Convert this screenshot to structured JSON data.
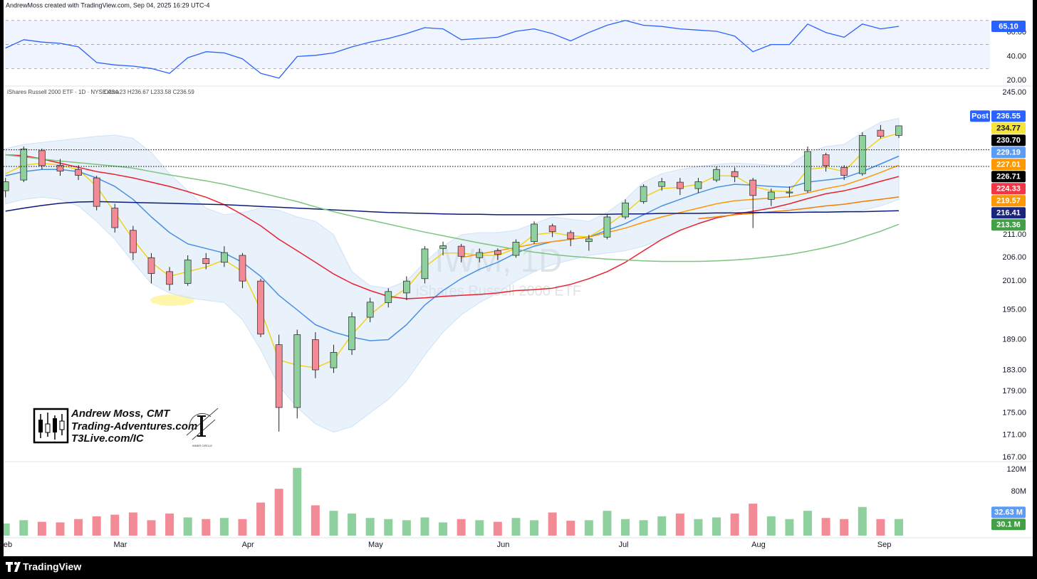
{
  "header": "AndrewMoss created with TradingView.com, Sep 04, 2025 16:29 UTC-4",
  "footer": "TradingView",
  "branding": {
    "name": "Andrew Moss, CMT",
    "site": "Trading-Adventures.com",
    "link": "T3Live.com/IC",
    "badge": "INNER CIRCLE"
  },
  "chart_data": [
    {
      "type": "line",
      "ylim": [
        16,
        74
      ],
      "yticks": [
        {
          "value": 60,
          "label": "60.00"
        },
        {
          "value": 40,
          "label": "40.00"
        },
        {
          "value": 20,
          "label": "20.00"
        }
      ],
      "levels": [
        70,
        50,
        30
      ],
      "band_color": "#2962ff",
      "series": [
        {
          "color": "#2962ff",
          "values": [
            47,
            54,
            52,
            51,
            48,
            35,
            33,
            32,
            30,
            26,
            39,
            44,
            43,
            38,
            26,
            22,
            40,
            41,
            43,
            48,
            52,
            55,
            59,
            64,
            63,
            54,
            55,
            56,
            61,
            63,
            59,
            53,
            60,
            66,
            70,
            66,
            65,
            63,
            62,
            61,
            57,
            44,
            50,
            50,
            67,
            60,
            56,
            67,
            63,
            65.1
          ]
        }
      ],
      "marker_labels": [
        {
          "value": 65.1,
          "label": "65.10",
          "color": "#2962ff"
        }
      ]
    },
    {
      "type": "candlestick",
      "title": "iShares Russell 2000 ETF · 1D · NYSE Arca",
      "subtitle": "O234.23 H236.67 L233.58 C236.59",
      "annotations": [
        "IWM, 1D",
        "iShares Russell 2000 ETF"
      ],
      "log_scale": true,
      "grid": false,
      "xlim": [
        -0.3,
        54
      ],
      "xticks": [
        {
          "value": 0,
          "label": "Feb"
        },
        {
          "value": 6.3,
          "label": "Mar"
        },
        {
          "value": 13.3,
          "label": "Apr"
        },
        {
          "value": 20.3,
          "label": "May"
        },
        {
          "value": 27.3,
          "label": "Jun"
        },
        {
          "value": 33.9,
          "label": "Jul"
        },
        {
          "value": 41.3,
          "label": "Aug"
        },
        {
          "value": 48.2,
          "label": "Sep"
        }
      ],
      "ylim": [
        166.4,
        246.5
      ],
      "yticks": [
        {
          "value": 245,
          "label": "245.00"
        },
        {
          "value": 211,
          "label": "211.00"
        },
        {
          "value": 206,
          "label": "206.00"
        },
        {
          "value": 201,
          "label": "201.00"
        },
        {
          "value": 195,
          "label": "195.00"
        },
        {
          "value": 189,
          "label": "189.00"
        },
        {
          "value": 183,
          "label": "183.00"
        },
        {
          "value": 179,
          "label": "179.00"
        },
        {
          "value": 175,
          "label": "175.00"
        },
        {
          "value": 171,
          "label": "171.00"
        },
        {
          "value": 167,
          "label": "167.00"
        }
      ],
      "up_color": "#8fd19e",
      "down_color": "#f28b96",
      "open": [
        221,
        223.5,
        230.5,
        227,
        226,
        224,
        217,
        212,
        206,
        203,
        200.5,
        205.8,
        205,
        206.5,
        201,
        188,
        176,
        189,
        183.5,
        187,
        193.5,
        196.5,
        198.5,
        201.5,
        208,
        208.5,
        206,
        207.5,
        206.5,
        209.5,
        213,
        211.5,
        209.5,
        210.5,
        215,
        218.5,
        222,
        223,
        221.5,
        223.5,
        225.5,
        223.5,
        219,
        220.5,
        221,
        229.5,
        226.5,
        225,
        235.5,
        234.23
      ],
      "high": [
        224,
        231.5,
        231,
        228.5,
        227,
        224.5,
        218,
        213,
        207,
        204,
        206.5,
        207,
        208.5,
        207,
        201.5,
        190,
        191,
        190.5,
        188,
        194.5,
        197.5,
        199.5,
        202,
        208.5,
        209.5,
        209,
        208,
        208,
        210,
        214,
        213.5,
        212,
        211,
        215.5,
        219,
        222.5,
        224,
        224,
        224,
        226.7,
        226.5,
        224,
        221.5,
        222,
        231.5,
        230,
        227,
        235,
        236.8,
        236.67
      ],
      "low": [
        219.5,
        223,
        226,
        224.5,
        223.5,
        216.5,
        211.5,
        205.5,
        200.5,
        199,
        200,
        203.5,
        204,
        199.5,
        189.5,
        171.6,
        174,
        181.5,
        182.5,
        186,
        192.5,
        195.5,
        197,
        200.5,
        206.5,
        205,
        205,
        205.5,
        206,
        209,
        210.5,
        208.5,
        207.5,
        210,
        214.5,
        218,
        221,
        220,
        220.5,
        223,
        223,
        212.5,
        217.5,
        219.5,
        220.5,
        225.5,
        223.5,
        224.5,
        233.5,
        233.58
      ],
      "close": [
        223.1,
        230.9,
        226.9,
        225.6,
        224.6,
        217.4,
        212.6,
        207.1,
        202.6,
        200.3,
        205.5,
        204.7,
        207.1,
        201,
        190.1,
        176,
        190,
        183.1,
        186.5,
        193.6,
        196.6,
        198.8,
        201,
        207.9,
        208.6,
        206.3,
        207.1,
        206.7,
        209.4,
        213.4,
        211.7,
        210.1,
        210.1,
        215,
        218.2,
        222,
        223.1,
        221.5,
        223.1,
        226,
        224.3,
        219.9,
        220.7,
        220.7,
        230.3,
        226.9,
        224.6,
        234.2,
        234,
        236.59
      ],
      "bands": {
        "color": "#cfe2f7",
        "upper": [
          231,
          232,
          232.5,
          233,
          233.5,
          234,
          234.3,
          233.5,
          230,
          225,
          221,
          217,
          215.5,
          216,
          217,
          216.5,
          215,
          214,
          211,
          203,
          200,
          199.5,
          201,
          205,
          208.5,
          211,
          211.5,
          211.5,
          212,
          213.5,
          215,
          214.5,
          214,
          216,
          219,
          223,
          225,
          226,
          226.7,
          227.2,
          227.5,
          227.3,
          227,
          227,
          230,
          231.5,
          232,
          235,
          237.5,
          238.5
        ],
        "lower": [
          218,
          219,
          219.5,
          219,
          217.5,
          214,
          210,
          205,
          200.5,
          198.5,
          197.5,
          197,
          196.5,
          193,
          187,
          180,
          176,
          173,
          171.5,
          172.5,
          175,
          177.5,
          181,
          186,
          190.5,
          194,
          196.5,
          198.5,
          201,
          203,
          204.5,
          205.5,
          206.5,
          207,
          207.5,
          208.5,
          210,
          212,
          213.5,
          215,
          216.5,
          217,
          217,
          216.8,
          216.5,
          216,
          216,
          216.5,
          217.5,
          219
        ]
      },
      "series": [
        {
          "color": "#f2d21b",
          "values": [
            225,
            227,
            227.5,
            227,
            226,
            222,
            216,
            210,
            205,
            202,
            203,
            204,
            205.5,
            203,
            195,
            185,
            184,
            183.5,
            185,
            190,
            194,
            197,
            199.5,
            204,
            207,
            207,
            206.5,
            206.5,
            208,
            211,
            211.5,
            210.8,
            210.5,
            213,
            216,
            219.5,
            221.5,
            221.8,
            222.5,
            224.5,
            224.5,
            222,
            221,
            220.8,
            226,
            226.5,
            225.5,
            230,
            233.5,
            234.77
          ]
        },
        {
          "color": "#4a90e2",
          "values": [
            224.5,
            225.5,
            226,
            226,
            225.5,
            224,
            222,
            219,
            215,
            211.5,
            209,
            208,
            207,
            205,
            202,
            198,
            195,
            192,
            190.5,
            189.5,
            188.8,
            189,
            192,
            196,
            199,
            201.5,
            203.5,
            205,
            207,
            208.5,
            209.5,
            210,
            210.5,
            212,
            213.5,
            215.5,
            217.5,
            219,
            220.5,
            221.8,
            222.5,
            222.3,
            222,
            221.8,
            223,
            223.5,
            224,
            225.5,
            227.3,
            229.19
          ]
        },
        {
          "color": "#ff9800",
          "values": [
            null,
            null,
            null,
            null,
            null,
            null,
            null,
            null,
            null,
            null,
            null,
            null,
            null,
            null,
            null,
            null,
            null,
            null,
            null,
            null,
            null,
            null,
            null,
            null,
            null,
            206,
            206.8,
            207.5,
            208.2,
            209,
            209.5,
            210,
            210.5,
            211.5,
            212.5,
            213.8,
            215,
            216,
            217,
            218,
            218.7,
            219,
            219.3,
            219.6,
            220.5,
            221.5,
            222.3,
            223.7,
            225.3,
            227.01
          ]
        },
        {
          "color": "#e8212f",
          "values": [
            229.5,
            229.3,
            228.5,
            227.5,
            226.5,
            225.5,
            224.8,
            224,
            223,
            222,
            220.8,
            219.5,
            217.8,
            215.5,
            213,
            210,
            207.5,
            205,
            202.5,
            200.5,
            199,
            197.8,
            197.3,
            197.5,
            197.8,
            198,
            198.2,
            198.5,
            199,
            199.2,
            199.5,
            200.3,
            201.5,
            203,
            205,
            207.5,
            210,
            212,
            213.5,
            214.8,
            215.6,
            216.3,
            217,
            218,
            219.2,
            220.3,
            221,
            222,
            223.2,
            224.33
          ]
        },
        {
          "color": "#f57c00",
          "values": [
            null,
            null,
            null,
            null,
            null,
            null,
            null,
            null,
            null,
            null,
            null,
            null,
            null,
            null,
            null,
            null,
            null,
            null,
            null,
            null,
            null,
            null,
            null,
            null,
            null,
            null,
            null,
            null,
            null,
            null,
            null,
            null,
            null,
            null,
            null,
            null,
            null,
            null,
            214.6,
            215,
            215.5,
            215.8,
            216.2,
            216.5,
            217,
            217.5,
            217.9,
            218.5,
            219,
            219.57
          ]
        },
        {
          "color": "#0d1b7a",
          "values": [
            216.3,
            217,
            217.6,
            218.1,
            218.4,
            218.5,
            218.4,
            218.3,
            218.2,
            218.1,
            218,
            217.9,
            217.8,
            217.6,
            217.4,
            217.2,
            217,
            216.8,
            216.6,
            216.4,
            216.2,
            216,
            215.9,
            215.8,
            215.7,
            215.6,
            215.6,
            215.5,
            215.5,
            215.5,
            215.5,
            215.6,
            215.6,
            215.6,
            215.7,
            215.7,
            215.8,
            215.8,
            215.8,
            215.9,
            215.9,
            216,
            216,
            216,
            216.1,
            216.1,
            216.2,
            216.2,
            216.3,
            216.41
          ]
        },
        {
          "color": "#7cc47f",
          "values": [
            229.5,
            229,
            228.5,
            228,
            227.6,
            227.2,
            226.8,
            226.3,
            225.5,
            224.7,
            224,
            223.3,
            222.5,
            221.5,
            220.5,
            219.5,
            218.5,
            217.3,
            216.2,
            215.2,
            214.3,
            213.4,
            212.5,
            211.6,
            210.8,
            210,
            209.2,
            208.5,
            207.8,
            207.2,
            206.7,
            206.3,
            206,
            205.7,
            205.5,
            205.3,
            205.2,
            205.2,
            205.2,
            205.3,
            205.5,
            205.8,
            206.2,
            206.7,
            207.4,
            208.2,
            209.2,
            210.5,
            211.8,
            213.36
          ]
        }
      ],
      "marker_labels": [
        {
          "value": 236.55,
          "label": "236.55",
          "color": "#2962ff",
          "tag": "Post"
        },
        {
          "value": 234.77,
          "label": "234.77",
          "color": "#f5e23b"
        },
        {
          "value": 230.7,
          "label": "230.70",
          "color": "#000000",
          "dotted_line": true
        },
        {
          "value": 229.19,
          "label": "229.19",
          "color": "#5b9cf6"
        },
        {
          "value": 227.01,
          "label": "227.01",
          "color": "#ff9800"
        },
        {
          "value": 226.71,
          "label": "226.71",
          "color": "#000000",
          "dotted_line": true
        },
        {
          "value": 224.33,
          "label": "224.33",
          "color": "#f23645"
        },
        {
          "value": 219.57,
          "label": "219.57",
          "color": "#ff9800"
        },
        {
          "value": 216.41,
          "label": "216.41",
          "color": "#1a237e"
        },
        {
          "value": 213.36,
          "label": "213.36",
          "color": "#43a047"
        }
      ]
    },
    {
      "type": "bar",
      "ylim": [
        0,
        133
      ],
      "yticks": [
        {
          "value": 120,
          "label": "120M"
        },
        {
          "value": 80,
          "label": "80M"
        }
      ],
      "up_color": "#8fd19e",
      "down_color": "#f28b96",
      "values": [
        22,
        28,
        25,
        24,
        30,
        35,
        38,
        42,
        28,
        40,
        33,
        30,
        32,
        30,
        60,
        85,
        123,
        55,
        45,
        40,
        32,
        30,
        28,
        33,
        24,
        30,
        28,
        25,
        32,
        28,
        42,
        27,
        28,
        45,
        30,
        28,
        35,
        40,
        30,
        33,
        40,
        58,
        35,
        30,
        45,
        32,
        30,
        52,
        30,
        30.1
      ],
      "marker_labels": [
        {
          "value": 32.63,
          "label": "32.63 M",
          "color": "#5b9cf6"
        },
        {
          "value": 30.1,
          "label": "30.1 M",
          "color": "#43a047"
        }
      ]
    }
  ]
}
